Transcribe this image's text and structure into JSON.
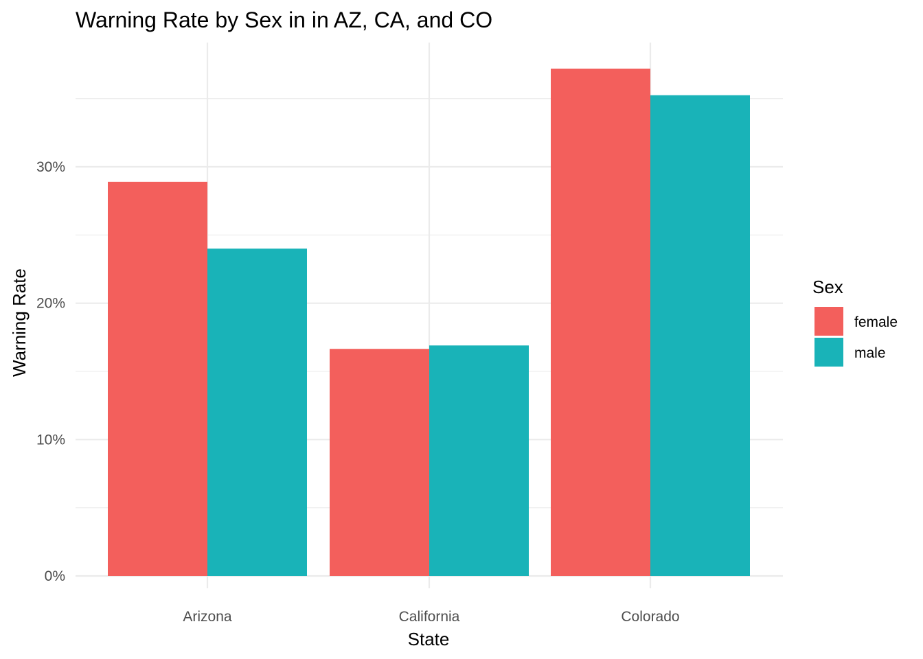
{
  "chart_data": {
    "type": "bar",
    "title": "Warning Rate by Sex in in AZ, CA, and CO",
    "xlabel": "State",
    "ylabel": "Warning Rate",
    "categories": [
      "Arizona",
      "California",
      "Colorado"
    ],
    "series": [
      {
        "name": "female",
        "values": [
          28.9,
          16.65,
          37.2
        ],
        "color": "#F35F5C"
      },
      {
        "name": "male",
        "values": [
          24.0,
          16.9,
          35.25
        ],
        "color": "#19B3B8"
      }
    ],
    "y_ticks": [
      0,
      10,
      20,
      30
    ],
    "y_tick_labels": [
      "0%",
      "10%",
      "20%",
      "30%"
    ],
    "ylim": [
      0,
      38.9
    ],
    "grid": true,
    "legend_title": "Sex",
    "legend_position": "right"
  }
}
